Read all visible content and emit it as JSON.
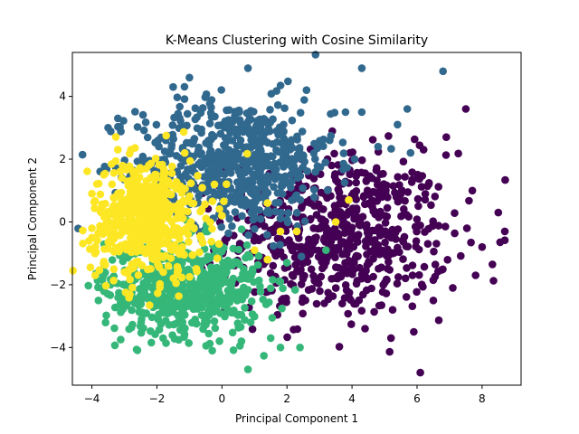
{
  "chart_data": {
    "type": "scatter",
    "title": "K-Means Clustering with Cosine Similarity",
    "xlabel": "Principal Component 1",
    "ylabel": "Principal Component 2",
    "xlim": [
      -4.6,
      9.2
    ],
    "ylim": [
      -5.2,
      5.4
    ],
    "xticks": [
      -4,
      -2,
      0,
      2,
      4,
      6,
      8
    ],
    "yticks": [
      -4,
      -2,
      0,
      2,
      4
    ],
    "grid": false,
    "legend": "none",
    "series": [
      {
        "color": "#440154",
        "center": [
          3.6,
          -0.4
        ],
        "spread": [
          1.7,
          1.3
        ],
        "count": 650,
        "outliers": [
          [
            7.5,
            3.6
          ],
          [
            6.9,
            2.7
          ],
          [
            6.2,
            2.3
          ],
          [
            7.7,
            1.0
          ],
          [
            8.5,
            0.3
          ],
          [
            8.7,
            -0.3
          ],
          [
            8.0,
            -0.8
          ],
          [
            6.1,
            -4.8
          ],
          [
            5.2,
            -3.7
          ],
          [
            4.4,
            -3.4
          ],
          [
            3.7,
            -2.6
          ],
          [
            5.9,
            -3.5
          ],
          [
            6.5,
            -2.5
          ],
          [
            7.8,
            -1.7
          ],
          [
            7.1,
            -2.1
          ]
        ]
      },
      {
        "color": "#31688e",
        "center": [
          0.4,
          1.9
        ],
        "spread": [
          1.5,
          1.0
        ],
        "count": 650,
        "outliers": [
          [
            4.3,
            4.9
          ],
          [
            6.8,
            4.8
          ],
          [
            5.7,
            3.6
          ],
          [
            4.3,
            3.5
          ],
          [
            3.8,
            3.5
          ],
          [
            5.4,
            3.1
          ],
          [
            4.8,
            2.4
          ],
          [
            0.8,
            4.9
          ],
          [
            -1.0,
            4.6
          ],
          [
            -1.5,
            4.3
          ],
          [
            -3.5,
            3.0
          ],
          [
            -3.2,
            3.3
          ],
          [
            2.6,
            4.2
          ],
          [
            5.8,
            2.2
          ]
        ]
      },
      {
        "color": "#35b779",
        "center": [
          -1.2,
          -2.1
        ],
        "spread": [
          1.2,
          0.75
        ],
        "count": 600,
        "outliers": [
          [
            0.8,
            -4.7
          ],
          [
            -0.3,
            -4.1
          ],
          [
            1.8,
            -4.0
          ],
          [
            2.4,
            -4.0
          ],
          [
            1.5,
            -3.7
          ],
          [
            0.6,
            -3.8
          ],
          [
            -3.8,
            -2.5
          ],
          [
            -3.7,
            -2.1
          ],
          [
            1.4,
            -1.2
          ],
          [
            2.0,
            -1.3
          ],
          [
            3.2,
            -0.9
          ]
        ]
      },
      {
        "color": "#fde725",
        "center": [
          -2.3,
          0.1
        ],
        "spread": [
          0.85,
          0.95
        ],
        "count": 550,
        "outliers": [
          [
            -4.0,
            0.9
          ],
          [
            -4.0,
            -0.2
          ],
          [
            -4.0,
            -0.5
          ],
          [
            -3.9,
            -1.7
          ],
          [
            -2.8,
            2.3
          ],
          [
            -3.2,
            2.3
          ],
          [
            1.4,
            0.6
          ],
          [
            3.9,
            0.7
          ],
          [
            3.5,
            0.0
          ],
          [
            1.8,
            -0.3
          ],
          [
            2.3,
            -0.3
          ],
          [
            1.4,
            -1.2
          ],
          [
            1.0,
            -0.9
          ],
          [
            0.0,
            0.2
          ]
        ]
      }
    ]
  }
}
